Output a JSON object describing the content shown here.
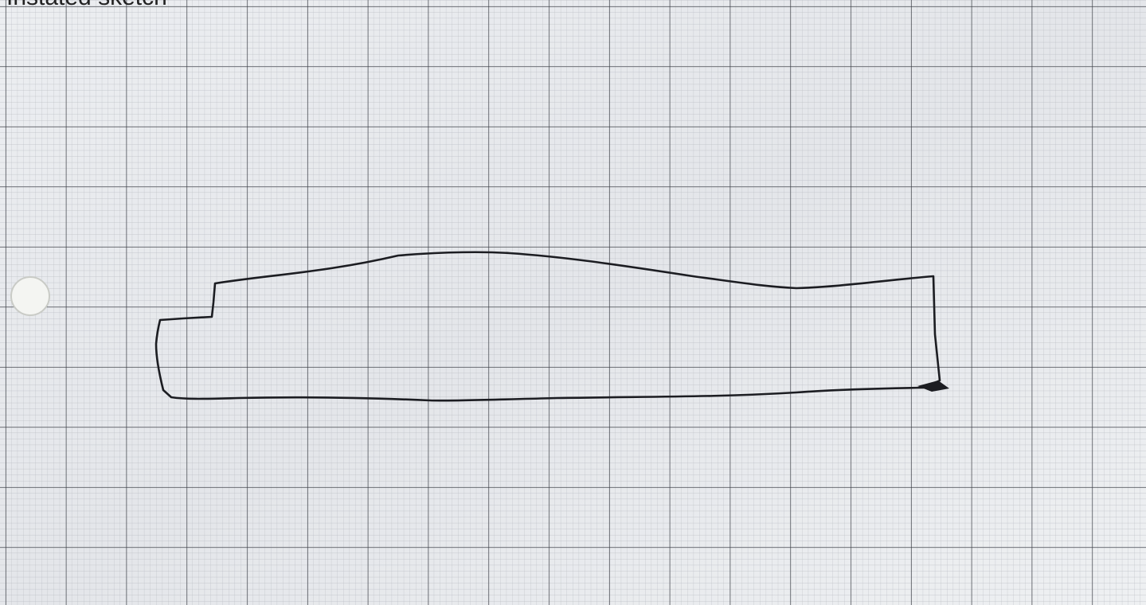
{
  "caption": "Instated sketch"
}
